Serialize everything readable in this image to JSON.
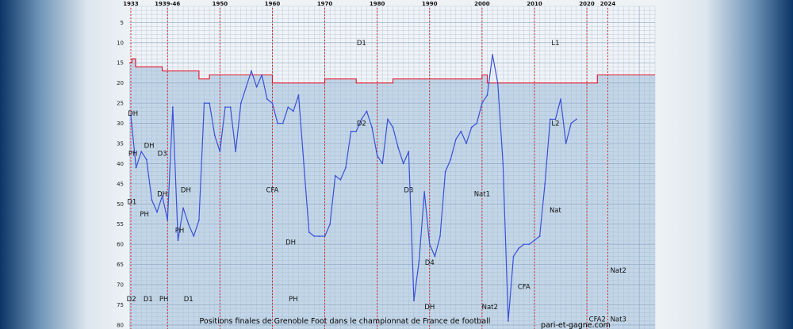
{
  "chart_data": {
    "type": "line",
    "title": "Positions finales de Grenoble Foot dans le championnat de France de football",
    "source": "pari-et-gagne.com",
    "x_ticks": [
      {
        "year": 1933,
        "label": "1933"
      },
      {
        "year": 1940,
        "label": "1939-46"
      },
      {
        "year": 1950,
        "label": "1950"
      },
      {
        "year": 1960,
        "label": "1960"
      },
      {
        "year": 1970,
        "label": "1970"
      },
      {
        "year": 1980,
        "label": "1980"
      },
      {
        "year": 1990,
        "label": "1990"
      },
      {
        "year": 2000,
        "label": "2000"
      },
      {
        "year": 2010,
        "label": "2010"
      },
      {
        "year": 2020,
        "label": "2020"
      },
      {
        "year": 2024,
        "label": "2024"
      }
    ],
    "y_ticks": [
      5,
      10,
      15,
      20,
      25,
      30,
      35,
      40,
      45,
      50,
      55,
      60,
      65,
      70,
      75,
      80
    ],
    "xlim": [
      1932.7,
      2033
    ],
    "ylim": [
      1,
      81
    ],
    "y_inverted": true,
    "colors": {
      "line": "#3a50d8",
      "boundary": "#e0142a",
      "marker": "#d62020",
      "grid": "#9eb6cc"
    },
    "series": [
      {
        "points": [
          [
            1933,
            28
          ],
          [
            1934,
            41
          ],
          [
            1935,
            37
          ],
          [
            1936,
            39
          ],
          [
            1937,
            49
          ],
          [
            1938,
            52
          ],
          [
            1939,
            48
          ],
          [
            1940,
            54
          ],
          [
            1941,
            26
          ],
          [
            1942,
            59
          ],
          [
            1943,
            51
          ],
          [
            1944,
            55
          ],
          [
            1945,
            58
          ],
          [
            1946,
            54
          ],
          [
            1947,
            25
          ],
          [
            1948,
            25
          ],
          [
            1949,
            33
          ],
          [
            1950,
            37
          ],
          [
            1951,
            26
          ],
          [
            1952,
            26
          ],
          [
            1953,
            37
          ],
          [
            1954,
            25
          ],
          [
            1955,
            21
          ],
          [
            1956,
            17
          ],
          [
            1957,
            21
          ],
          [
            1958,
            18
          ],
          [
            1959,
            24
          ],
          [
            1960,
            25
          ],
          [
            1961,
            30
          ],
          [
            1962,
            30
          ],
          [
            1963,
            26
          ],
          [
            1964,
            27
          ],
          [
            1965,
            23
          ],
          [
            1966,
            40
          ],
          [
            1967,
            57
          ],
          [
            1968,
            58
          ],
          [
            1969,
            58
          ],
          [
            1970,
            58
          ],
          [
            1971,
            55
          ],
          [
            1972,
            43
          ],
          [
            1973,
            44
          ],
          [
            1974,
            41
          ],
          [
            1975,
            32
          ],
          [
            1976,
            32
          ],
          [
            1977,
            29
          ],
          [
            1978,
            27
          ],
          [
            1979,
            31
          ],
          [
            1980,
            38
          ],
          [
            1981,
            40
          ],
          [
            1982,
            29
          ],
          [
            1983,
            31
          ],
          [
            1984,
            36
          ],
          [
            1985,
            40
          ],
          [
            1986,
            37
          ],
          [
            1987,
            74
          ],
          [
            1988,
            64
          ],
          [
            1989,
            47
          ],
          [
            1990,
            60
          ],
          [
            1991,
            63
          ],
          [
            1992,
            58
          ],
          [
            1993,
            42
          ],
          [
            1994,
            39
          ],
          [
            1995,
            34
          ],
          [
            1996,
            32
          ],
          [
            1997,
            35
          ],
          [
            1998,
            31
          ],
          [
            1999,
            30
          ],
          [
            2000,
            25
          ],
          [
            2001,
            23
          ],
          [
            2002,
            13
          ],
          [
            2003,
            20
          ],
          [
            2004,
            40
          ],
          [
            2005,
            79
          ],
          [
            2006,
            63
          ],
          [
            2007,
            61
          ],
          [
            2008,
            60
          ],
          [
            2009,
            60
          ],
          [
            2010,
            59
          ],
          [
            2011,
            58
          ],
          [
            2012,
            45
          ],
          [
            2013,
            29
          ],
          [
            2014,
            29
          ],
          [
            2015,
            24
          ],
          [
            2016,
            35
          ],
          [
            2017,
            30
          ],
          [
            2018,
            29
          ]
        ]
      }
    ],
    "boundaries": [
      [
        [
          1932.7,
          15
        ],
        [
          1933.2,
          15
        ],
        [
          1933.2,
          14
        ],
        [
          1933.9,
          14
        ],
        [
          1933.9,
          16
        ],
        [
          1939,
          16
        ],
        [
          1939,
          17
        ],
        [
          1946,
          17
        ],
        [
          1946,
          19
        ],
        [
          1948,
          19
        ],
        [
          1948,
          18
        ],
        [
          1960,
          18
        ],
        [
          1960,
          20
        ],
        [
          1970,
          20
        ],
        [
          1970,
          19
        ],
        [
          1976,
          19
        ],
        [
          1976,
          20
        ],
        [
          1983,
          20
        ],
        [
          1983,
          19
        ],
        [
          2000,
          19
        ],
        [
          2000,
          18
        ],
        [
          2001,
          18
        ],
        [
          2001,
          20
        ],
        [
          2022,
          20
        ],
        [
          2022,
          18
        ],
        [
          2033,
          18
        ]
      ]
    ],
    "zone_labels": [
      {
        "text": "D1",
        "x": 1977,
        "y": 10
      },
      {
        "text": "L1",
        "x": 2014,
        "y": 10
      },
      {
        "text": "DH",
        "x": 1933.4,
        "y": 27.5
      },
      {
        "text": "D2",
        "x": 1977,
        "y": 30
      },
      {
        "text": "L2",
        "x": 2014,
        "y": 30
      },
      {
        "text": "PH",
        "x": 1933.4,
        "y": 37.5
      },
      {
        "text": "DH",
        "x": 1936.5,
        "y": 35.5
      },
      {
        "text": "D3",
        "x": 1939,
        "y": 37.5
      },
      {
        "text": "DH",
        "x": 1939,
        "y": 47.5
      },
      {
        "text": "DH",
        "x": 1943.5,
        "y": 46.5
      },
      {
        "text": "CFA",
        "x": 1960,
        "y": 46.5
      },
      {
        "text": "D3",
        "x": 1986,
        "y": 46.5
      },
      {
        "text": "Nat1",
        "x": 2000,
        "y": 47.5
      },
      {
        "text": "D1",
        "x": 1933.2,
        "y": 49.5
      },
      {
        "text": "PH",
        "x": 1935.6,
        "y": 52.5
      },
      {
        "text": "PH",
        "x": 1942.3,
        "y": 56.5
      },
      {
        "text": "Nat",
        "x": 2014,
        "y": 51.5
      },
      {
        "text": "DH",
        "x": 1963.5,
        "y": 59.5
      },
      {
        "text": "D4",
        "x": 1990,
        "y": 64.5
      },
      {
        "text": "Nat2",
        "x": 2026,
        "y": 66.5
      },
      {
        "text": "CFA",
        "x": 2008,
        "y": 70.5
      },
      {
        "text": "D2",
        "x": 1933.1,
        "y": 73.5
      },
      {
        "text": "D1",
        "x": 1936.3,
        "y": 73.5
      },
      {
        "text": "PH",
        "x": 1939.3,
        "y": 73.5
      },
      {
        "text": "D1",
        "x": 1944,
        "y": 73.5
      },
      {
        "text": "PH",
        "x": 1964,
        "y": 73.5
      },
      {
        "text": "DH",
        "x": 1990,
        "y": 75.5
      },
      {
        "text": "Nat2",
        "x": 2001.5,
        "y": 75.5
      },
      {
        "text": "CFA2",
        "x": 2022,
        "y": 78.5
      },
      {
        "text": "Nat3",
        "x": 2026,
        "y": 78.5
      }
    ]
  }
}
